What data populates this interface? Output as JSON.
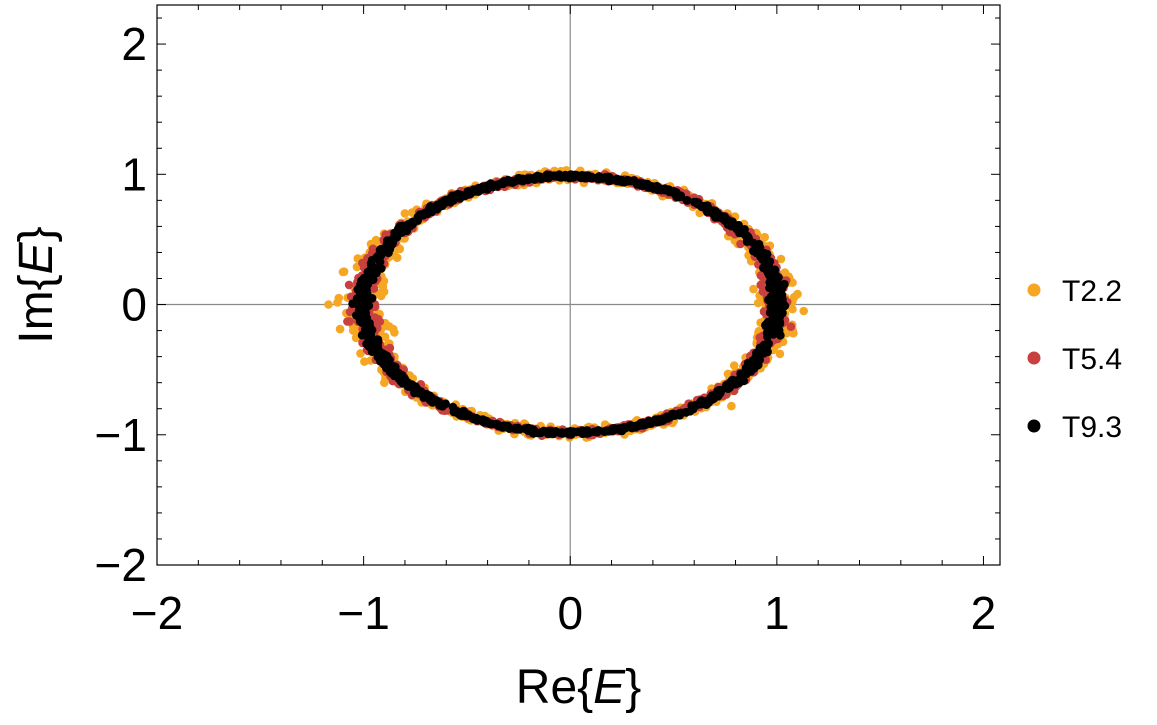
{
  "chart_data": {
    "type": "scatter",
    "xlabel": "Re{E}",
    "ylabel": "Im{E}",
    "xlim": [
      -2,
      2.08
    ],
    "ylim": [
      -2,
      2.3
    ],
    "x_ticks": [
      -2,
      -1,
      0,
      1,
      2
    ],
    "x_tick_labels": [
      "−2",
      "−1",
      "0",
      "1",
      "2"
    ],
    "y_ticks": [
      -2,
      -1,
      0,
      1,
      2
    ],
    "y_tick_labels": [
      "−2",
      "−1",
      "0",
      "1",
      "2"
    ],
    "grid": false,
    "axes_lines_through_origin": true,
    "legend_position": "right",
    "shape_description": "points distributed on a noisy ellipse centred at the origin, real semi-axis about 1, imaginary semi-axis about 0.98",
    "series": [
      {
        "name": "T2.2",
        "color": "#F5A623",
        "points": [
          [
            -1.17,
            0.0
          ],
          [
            -1.12,
            0.05
          ],
          [
            -1.1,
            0.25
          ],
          [
            1.13,
            -0.05
          ],
          [
            1.1,
            0.08
          ],
          [
            1.08,
            -0.22
          ],
          [
            1.06,
            0.2
          ],
          [
            -1.05,
            -0.2
          ],
          [
            0.9,
            0.55
          ],
          [
            -0.9,
            -0.6
          ],
          [
            0.78,
            -0.78
          ],
          [
            -0.8,
            0.7
          ],
          [
            0.55,
            0.88
          ],
          [
            -0.4,
            -0.92
          ],
          [
            0.15,
            -0.99
          ],
          [
            -0.25,
            0.97
          ],
          [
            0.98,
            -0.35
          ],
          [
            -0.97,
            0.4
          ],
          [
            0.3,
            0.97
          ],
          [
            -0.55,
            -0.86
          ],
          [
            0.68,
            -0.75
          ],
          [
            -0.7,
            0.75
          ],
          [
            1.02,
            0.35
          ],
          [
            -1.02,
            -0.1
          ],
          [
            0.45,
            -0.92
          ]
        ]
      },
      {
        "name": "T5.4",
        "color": "#C8413E",
        "points": [
          [
            -1.06,
            0.06
          ],
          [
            1.05,
            0.02
          ],
          [
            1.04,
            -0.12
          ],
          [
            -1.03,
            -0.08
          ],
          [
            0.95,
            0.42
          ],
          [
            -0.96,
            0.35
          ],
          [
            0.85,
            -0.58
          ],
          [
            -0.87,
            -0.55
          ],
          [
            0.6,
            0.82
          ],
          [
            -0.6,
            0.8
          ],
          [
            0.35,
            -0.95
          ],
          [
            -0.35,
            -0.94
          ],
          [
            0.05,
            0.99
          ],
          [
            -0.1,
            -0.99
          ],
          [
            1.0,
            0.2
          ],
          [
            -1.0,
            -0.25
          ],
          [
            0.75,
            0.68
          ],
          [
            -0.78,
            -0.65
          ],
          [
            0.2,
            0.98
          ],
          [
            -0.2,
            0.98
          ]
        ]
      },
      {
        "name": "T9.3",
        "color": "#000000",
        "points": [
          [
            -1.0,
            0.02
          ],
          [
            1.0,
            -0.02
          ],
          [
            -0.98,
            0.25
          ],
          [
            0.99,
            0.2
          ],
          [
            -0.97,
            -0.3
          ],
          [
            0.96,
            -0.3
          ],
          [
            -0.85,
            0.55
          ],
          [
            0.86,
            0.52
          ],
          [
            -0.82,
            -0.58
          ],
          [
            0.8,
            -0.6
          ],
          [
            -0.55,
            0.84
          ],
          [
            0.5,
            0.87
          ],
          [
            -0.45,
            -0.89
          ],
          [
            0.45,
            -0.89
          ],
          [
            0.0,
            0.99
          ],
          [
            0.0,
            -0.99
          ],
          [
            -0.25,
            0.97
          ],
          [
            0.25,
            -0.97
          ],
          [
            -1.02,
            0.1
          ],
          [
            1.01,
            0.12
          ]
        ]
      }
    ]
  }
}
